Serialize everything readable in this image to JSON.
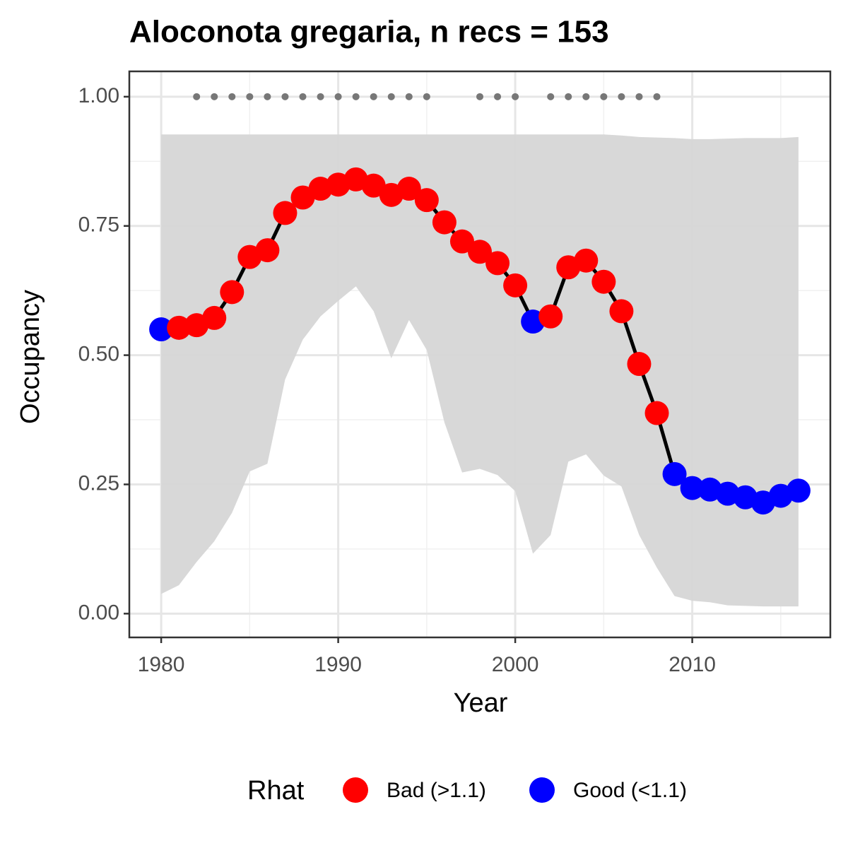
{
  "chart_data": {
    "type": "line",
    "title": "Aloconota gregaria, n recs = 153",
    "x_label": "Year",
    "y_label": "Occupancy",
    "x": [
      1980,
      1981,
      1982,
      1983,
      1984,
      1985,
      1986,
      1987,
      1988,
      1989,
      1990,
      1991,
      1992,
      1993,
      1994,
      1995,
      1996,
      1997,
      1998,
      1999,
      2000,
      2001,
      2002,
      2003,
      2004,
      2005,
      2006,
      2007,
      2008,
      2009,
      2010,
      2011,
      2012,
      2013,
      2014,
      2015,
      2016
    ],
    "values": [
      0.55,
      0.553,
      0.558,
      0.572,
      0.622,
      0.69,
      0.703,
      0.775,
      0.805,
      0.822,
      0.83,
      0.84,
      0.828,
      0.81,
      0.822,
      0.8,
      0.757,
      0.72,
      0.7,
      0.678,
      0.635,
      0.565,
      0.575,
      0.67,
      0.683,
      0.642,
      0.585,
      0.483,
      0.388,
      0.27,
      0.243,
      0.24,
      0.232,
      0.225,
      0.215,
      0.228,
      0.238
    ],
    "upper": [
      0.927,
      0.927,
      0.927,
      0.927,
      0.927,
      0.927,
      0.927,
      0.927,
      0.927,
      0.927,
      0.927,
      0.927,
      0.927,
      0.927,
      0.927,
      0.927,
      0.927,
      0.927,
      0.927,
      0.927,
      0.927,
      0.927,
      0.927,
      0.927,
      0.927,
      0.927,
      0.925,
      0.922,
      0.921,
      0.92,
      0.918,
      0.918,
      0.919,
      0.92,
      0.92,
      0.92,
      0.922
    ],
    "lower": [
      0.038,
      0.055,
      0.1,
      0.14,
      0.195,
      0.275,
      0.29,
      0.453,
      0.53,
      0.575,
      0.605,
      0.633,
      0.585,
      0.494,
      0.568,
      0.51,
      0.37,
      0.273,
      0.28,
      0.268,
      0.237,
      0.116,
      0.152,
      0.294,
      0.308,
      0.267,
      0.246,
      0.152,
      0.089,
      0.034,
      0.025,
      0.022,
      0.016,
      0.015,
      0.014,
      0.014,
      0.014
    ],
    "rhat": [
      "Good (<1.1)",
      "Bad (>1.1)",
      "Bad (>1.1)",
      "Bad (>1.1)",
      "Bad (>1.1)",
      "Bad (>1.1)",
      "Bad (>1.1)",
      "Bad (>1.1)",
      "Bad (>1.1)",
      "Bad (>1.1)",
      "Bad (>1.1)",
      "Bad (>1.1)",
      "Bad (>1.1)",
      "Bad (>1.1)",
      "Bad (>1.1)",
      "Bad (>1.1)",
      "Bad (>1.1)",
      "Bad (>1.1)",
      "Bad (>1.1)",
      "Bad (>1.1)",
      "Bad (>1.1)",
      "Good (<1.1)",
      "Bad (>1.1)",
      "Bad (>1.1)",
      "Bad (>1.1)",
      "Bad (>1.1)",
      "Bad (>1.1)",
      "Bad (>1.1)",
      "Bad (>1.1)",
      "Good (<1.1)",
      "Good (<1.1)",
      "Good (<1.1)",
      "Good (<1.1)",
      "Good (<1.1)",
      "Good (<1.1)",
      "Good (<1.1)",
      "Good (<1.1)"
    ],
    "records": {
      "x": [
        1982,
        1983,
        1984,
        1985,
        1986,
        1987,
        1988,
        1989,
        1990,
        1991,
        1992,
        1993,
        1994,
        1995,
        1998,
        1999,
        2000,
        2002,
        2003,
        2004,
        2005,
        2006,
        2007,
        2008
      ],
      "y": 1.0,
      "color": "#777777"
    },
    "line_color": "#000000",
    "ribbon_color": "#d6d6d6",
    "legend": {
      "title": "Rhat",
      "position": "bottom",
      "entries": [
        {
          "name": "Bad (>1.1)",
          "color": "#ff0000"
        },
        {
          "name": "Good (<1.1)",
          "color": "#0000ff"
        }
      ]
    },
    "xlim": [
      1978.2,
      2017.8
    ],
    "ylim": [
      -0.046,
      1.049
    ],
    "xticks": [
      1980,
      1990,
      2000,
      2010
    ],
    "xminor": [
      1985,
      1995,
      2005,
      2015
    ],
    "yticks": [
      {
        "value": 0,
        "label": "0.00"
      },
      {
        "value": 0.25,
        "label": "0.25"
      },
      {
        "value": 0.5,
        "label": "0.50"
      },
      {
        "value": 0.75,
        "label": "0.75"
      },
      {
        "value": 1,
        "label": "1.00"
      }
    ],
    "yminor": [
      0.125,
      0.375,
      0.625,
      0.875
    ],
    "grid": true
  }
}
